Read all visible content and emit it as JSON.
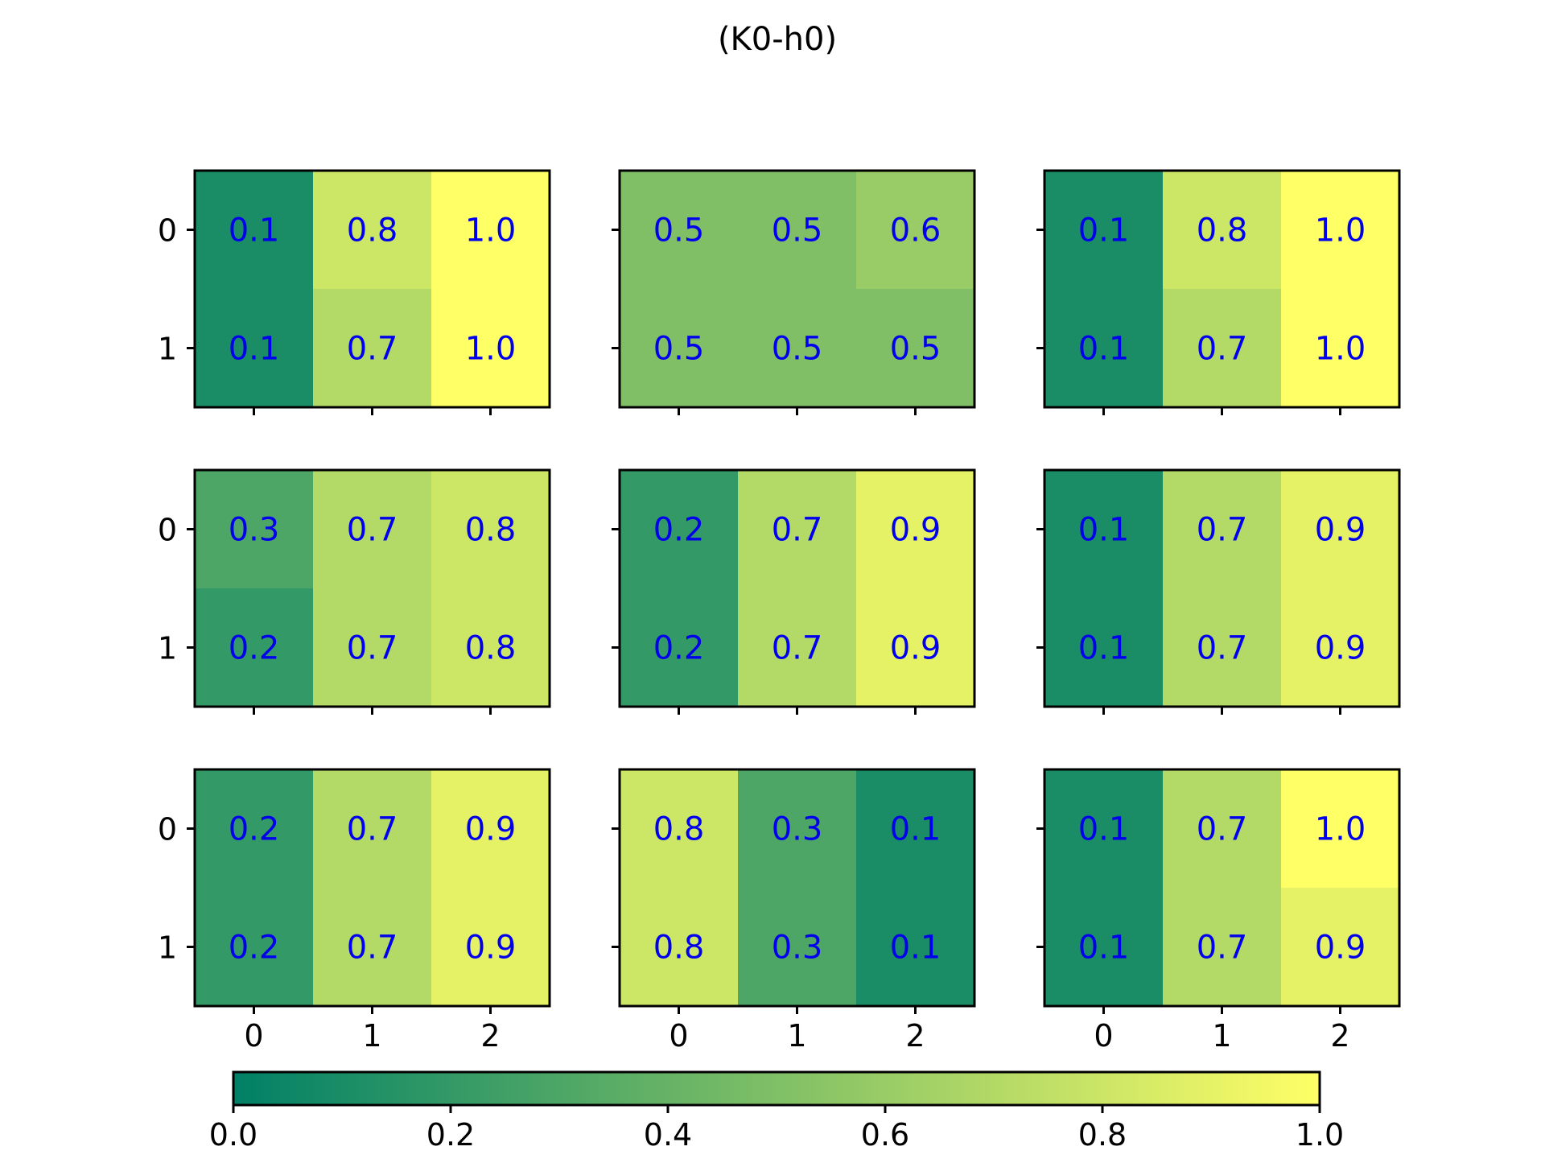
{
  "chart_data": {
    "type": "heatmap",
    "title": "(K0-h0)",
    "colormap": "summer",
    "cell_text_color": "#0000ee",
    "clim": [
      0,
      1
    ],
    "grid": "3x3 subplots",
    "row_tick_labels": [
      "0",
      "1"
    ],
    "col_tick_labels": [
      "0",
      "1",
      "2"
    ],
    "colorbar": {
      "orientation": "horizontal",
      "position": "bottom",
      "ticks": [
        "0.0",
        "0.2",
        "0.4",
        "0.6",
        "0.8",
        "1.0"
      ]
    },
    "panels": [
      {
        "values": [
          [
            0.1,
            0.8,
            1.0
          ],
          [
            0.1,
            0.7,
            1.0
          ]
        ],
        "labels": [
          [
            "0.1",
            "0.8",
            "1.0"
          ],
          [
            "0.1",
            "0.7",
            "1.0"
          ]
        ]
      },
      {
        "values": [
          [
            0.5,
            0.5,
            0.6
          ],
          [
            0.5,
            0.5,
            0.5
          ]
        ],
        "labels": [
          [
            "0.5",
            "0.5",
            "0.6"
          ],
          [
            "0.5",
            "0.5",
            "0.5"
          ]
        ]
      },
      {
        "values": [
          [
            0.1,
            0.8,
            1.0
          ],
          [
            0.1,
            0.7,
            1.0
          ]
        ],
        "labels": [
          [
            "0.1",
            "0.8",
            "1.0"
          ],
          [
            "0.1",
            "0.7",
            "1.0"
          ]
        ]
      },
      {
        "values": [
          [
            0.3,
            0.7,
            0.8
          ],
          [
            0.2,
            0.7,
            0.8
          ]
        ],
        "labels": [
          [
            "0.3",
            "0.7",
            "0.8"
          ],
          [
            "0.2",
            "0.7",
            "0.8"
          ]
        ]
      },
      {
        "values": [
          [
            0.2,
            0.7,
            0.9
          ],
          [
            0.2,
            0.7,
            0.9
          ]
        ],
        "labels": [
          [
            "0.2",
            "0.7",
            "0.9"
          ],
          [
            "0.2",
            "0.7",
            "0.9"
          ]
        ]
      },
      {
        "values": [
          [
            0.1,
            0.7,
            0.9
          ],
          [
            0.1,
            0.7,
            0.9
          ]
        ],
        "labels": [
          [
            "0.1",
            "0.7",
            "0.9"
          ],
          [
            "0.1",
            "0.7",
            "0.9"
          ]
        ]
      },
      {
        "values": [
          [
            0.2,
            0.7,
            0.9
          ],
          [
            0.2,
            0.7,
            0.9
          ]
        ],
        "labels": [
          [
            "0.2",
            "0.7",
            "0.9"
          ],
          [
            "0.2",
            "0.7",
            "0.9"
          ]
        ]
      },
      {
        "values": [
          [
            0.8,
            0.3,
            0.1
          ],
          [
            0.8,
            0.3,
            0.1
          ]
        ],
        "labels": [
          [
            "0.8",
            "0.3",
            "0.1"
          ],
          [
            "0.8",
            "0.3",
            "0.1"
          ]
        ]
      },
      {
        "values": [
          [
            0.1,
            0.7,
            1.0
          ],
          [
            0.1,
            0.7,
            0.9
          ]
        ],
        "labels": [
          [
            "0.1",
            "0.7",
            "1.0"
          ],
          [
            "0.1",
            "0.7",
            "0.9"
          ]
        ]
      }
    ]
  }
}
